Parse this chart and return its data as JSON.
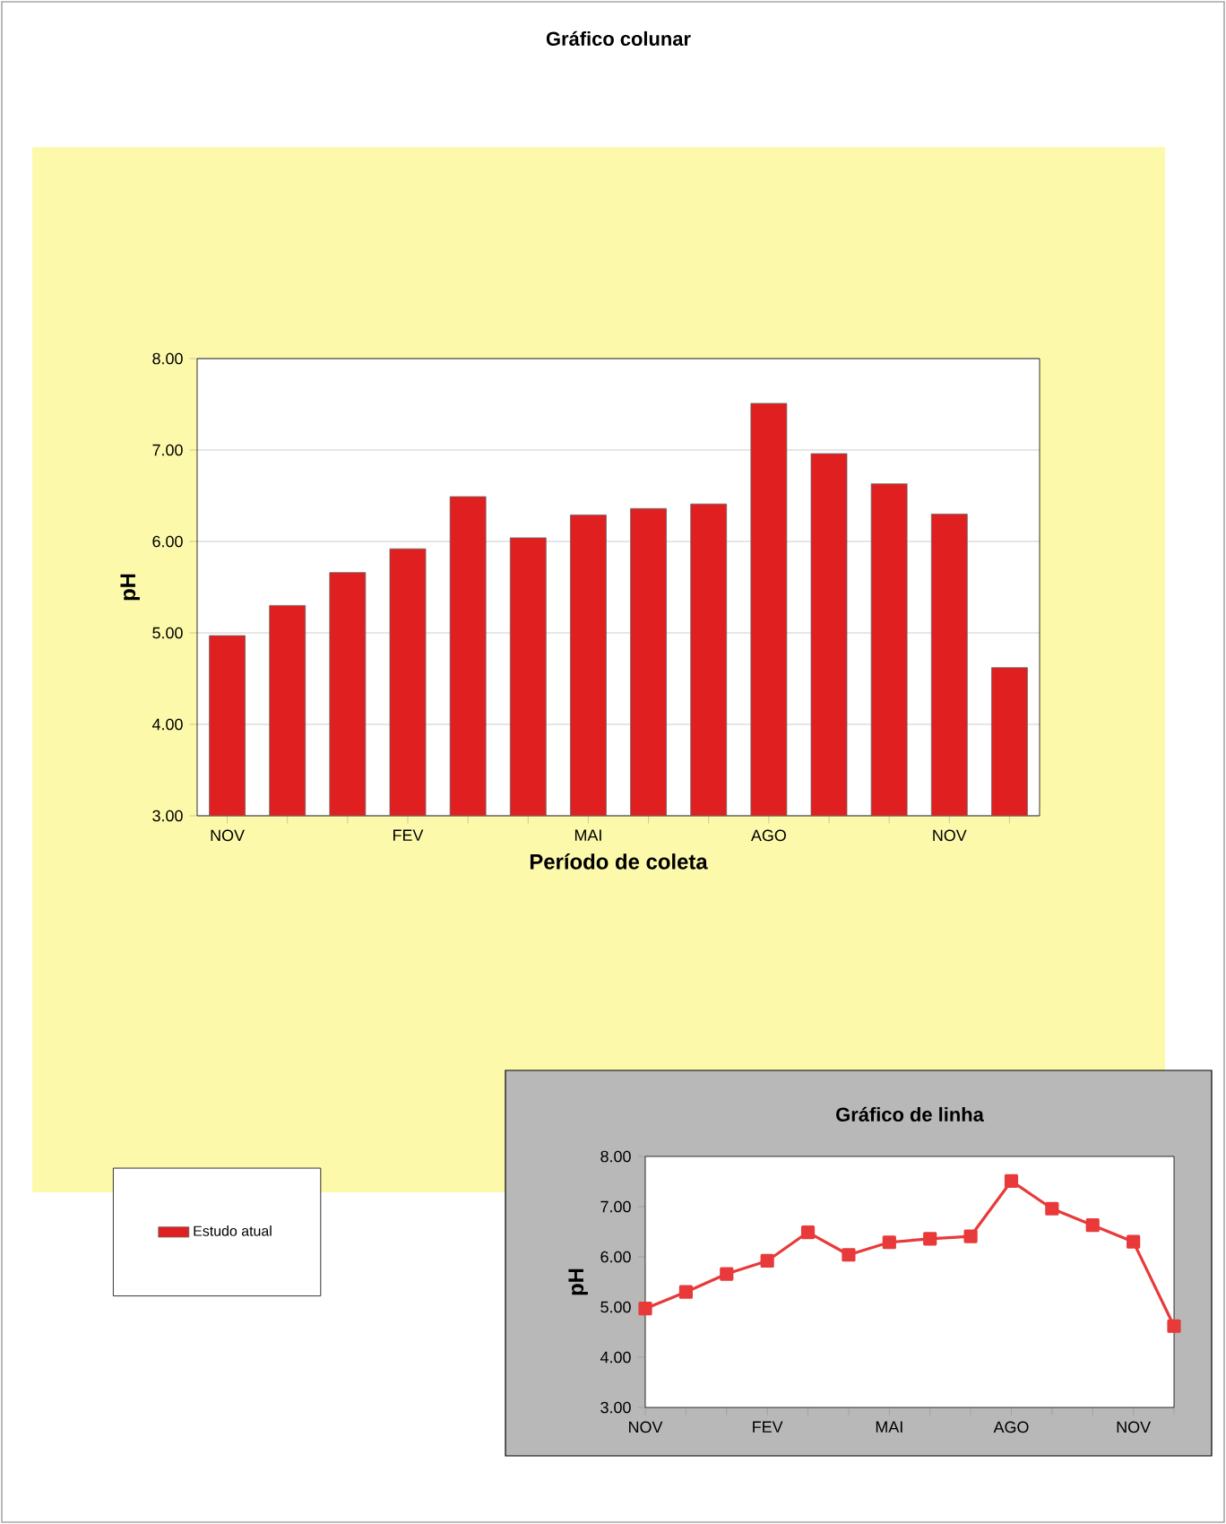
{
  "chart_data": [
    {
      "type": "bar",
      "title": "Gráfico colunar",
      "xlabel": "Período de coleta",
      "ylabel": "pH",
      "categories": [
        "NOV",
        null,
        null,
        "FEV",
        null,
        null,
        "MAI",
        null,
        null,
        "AGO",
        null,
        null,
        "NOV",
        null
      ],
      "series": [
        {
          "name": "Estudo atual",
          "color": "#e02020",
          "values": [
            4.97,
            5.3,
            5.66,
            5.92,
            6.49,
            6.04,
            6.29,
            6.36,
            6.41,
            7.51,
            6.96,
            6.63,
            6.3,
            4.62
          ]
        }
      ],
      "ylim": [
        3,
        8
      ],
      "yticks": [
        {
          "value": 3,
          "label": "3.00"
        },
        {
          "value": 4,
          "label": "4.00"
        },
        {
          "value": 5,
          "label": "5.00"
        },
        {
          "value": 6,
          "label": "6.00"
        },
        {
          "value": 7,
          "label": "7.00"
        },
        {
          "value": 8,
          "label": "8.00"
        }
      ],
      "grid": "y",
      "legend": "bottom left"
    },
    {
      "type": "line",
      "title": "Gráfico de linha",
      "ylabel": "pH",
      "categories": [
        "NOV",
        null,
        null,
        "FEV",
        null,
        null,
        "MAI",
        null,
        null,
        "AGO",
        null,
        null,
        "NOV",
        null
      ],
      "series": [
        {
          "color": "#e83a3a",
          "values": [
            4.97,
            5.3,
            5.66,
            5.92,
            6.49,
            6.04,
            6.29,
            6.36,
            6.41,
            7.51,
            6.96,
            6.63,
            6.3,
            4.62
          ]
        }
      ],
      "ylim": [
        3,
        8
      ],
      "yticks": [
        {
          "value": 3,
          "label": "3.00"
        },
        {
          "value": 4,
          "label": "4.00"
        },
        {
          "value": 5,
          "label": "5.00"
        },
        {
          "value": 6,
          "label": "6.00"
        },
        {
          "value": 7,
          "label": "7.00"
        },
        {
          "value": 8,
          "label": "8.00"
        }
      ],
      "marker": "square"
    }
  ]
}
